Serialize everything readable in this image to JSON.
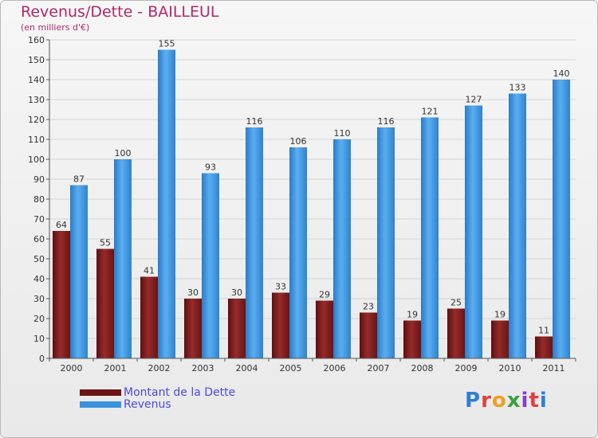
{
  "header": {
    "title": "Revenus/Dette - BAILLEUL",
    "subtitle": "(en milliers d'€)"
  },
  "chart_data": {
    "type": "bar",
    "categories": [
      "2000",
      "2001",
      "2002",
      "2003",
      "2004",
      "2005",
      "2006",
      "2007",
      "2008",
      "2009",
      "2010",
      "2011"
    ],
    "series": [
      {
        "name": "Montant de la Dette",
        "color": "#7a1e1e",
        "values": [
          64,
          55,
          41,
          30,
          30,
          33,
          29,
          23,
          19,
          25,
          19,
          11
        ]
      },
      {
        "name": "Revenus",
        "color": "#3a92dc",
        "values": [
          87,
          100,
          155,
          93,
          116,
          106,
          110,
          116,
          121,
          127,
          133,
          140
        ]
      }
    ],
    "ylim": [
      0,
      160
    ],
    "yticks": [
      0,
      10,
      20,
      30,
      40,
      50,
      60,
      70,
      80,
      90,
      100,
      110,
      120,
      130,
      140,
      150,
      160
    ],
    "grid": true,
    "legend": "bottom-left"
  },
  "logo": {
    "text": "Proxiti",
    "colors": [
      "#2d7fd4",
      "#e04040",
      "#f0a020",
      "#3aa040",
      "#8a3ad0",
      "#e04040",
      "#2d7fd4"
    ]
  }
}
